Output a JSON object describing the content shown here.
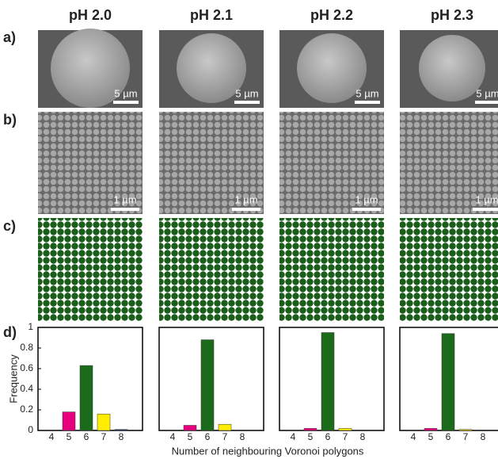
{
  "row_labels": [
    "a)",
    "b)",
    "c)",
    "d)"
  ],
  "scale_bars": {
    "a": "5 µm",
    "b": "1 µm"
  },
  "x_axis_label": "Number of neighbouring Voronoi polygons",
  "chart_data": [
    {
      "type": "bar",
      "title": "pH 2.0",
      "ylabel": "Frequency",
      "categories": [
        "4",
        "5",
        "6",
        "7",
        "8"
      ],
      "values": [
        0,
        0.18,
        0.63,
        0.16,
        0.01
      ],
      "colors": [
        "#1e90ff",
        "#e6007e",
        "#1b6b1b",
        "#ffee00",
        "#1f3b73"
      ],
      "ylim": [
        0,
        1
      ],
      "yticks": [
        0,
        0.2,
        0.4,
        0.6,
        0.8,
        1
      ]
    },
    {
      "type": "bar",
      "title": "pH 2.1",
      "categories": [
        "4",
        "5",
        "6",
        "7",
        "8"
      ],
      "values": [
        0,
        0.05,
        0.88,
        0.06,
        0
      ],
      "colors": [
        "#1e90ff",
        "#e6007e",
        "#1b6b1b",
        "#ffee00",
        "#1f3b73"
      ],
      "ylim": [
        0,
        1
      ]
    },
    {
      "type": "bar",
      "title": "pH 2.2",
      "categories": [
        "4",
        "5",
        "6",
        "7",
        "8"
      ],
      "values": [
        0,
        0.02,
        0.95,
        0.02,
        0
      ],
      "colors": [
        "#1e90ff",
        "#e6007e",
        "#1b6b1b",
        "#ffee00",
        "#1f3b73"
      ],
      "ylim": [
        0,
        1
      ]
    },
    {
      "type": "bar",
      "title": "pH 2.3",
      "categories": [
        "4",
        "5",
        "6",
        "7",
        "8"
      ],
      "values": [
        0,
        0.02,
        0.94,
        0.01,
        0
      ],
      "colors": [
        "#1e90ff",
        "#e6007e",
        "#1b6b1b",
        "#ffee00",
        "#1f3b73"
      ],
      "ylim": [
        0,
        1
      ]
    }
  ]
}
